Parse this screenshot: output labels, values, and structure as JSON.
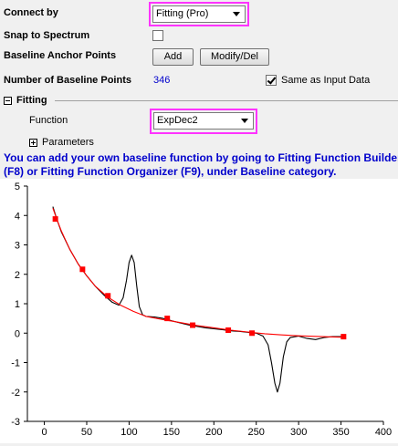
{
  "connect_by": {
    "label": "Connect by",
    "value": "Fitting (Pro)"
  },
  "snap": {
    "label": "Snap to Spectrum",
    "checked": false
  },
  "anchor": {
    "label": "Baseline Anchor Points",
    "add_label": "Add",
    "modify_label": "Modify/Del"
  },
  "num_points": {
    "label": "Number of Baseline Points",
    "value": "346",
    "same_label": "Same as Input Data",
    "same_checked": true
  },
  "fitting": {
    "header": "Fitting",
    "function_label": "Function",
    "function_value": "ExpDec2",
    "parameters_label": "Parameters"
  },
  "hint": {
    "line1": "You can add your own baseline function by going to Fitting Function Builder",
    "line2": "(F8) or Fitting Function Organizer (F9), under Baseline category."
  },
  "colors": {
    "highlight": "#ff33ff",
    "hint": "#0000cc",
    "baseline": "#ff0000",
    "anchor": "#ff0000",
    "data": "#000000"
  },
  "chart_data": {
    "type": "line",
    "title": "",
    "xlabel": "",
    "ylabel": "",
    "xlim": [
      -20,
      400
    ],
    "ylim": [
      -3,
      5
    ],
    "xticks": [
      0,
      50,
      100,
      150,
      200,
      250,
      300,
      350,
      400
    ],
    "yticks": [
      -3,
      -2,
      -1,
      0,
      1,
      2,
      3,
      4,
      5
    ],
    "series": [
      {
        "role": "data",
        "x": [
          10,
          15,
          20,
          30,
          40,
          50,
          60,
          70,
          80,
          88,
          93,
          97,
          100,
          103,
          106,
          109,
          112,
          116,
          120,
          130,
          140,
          150,
          160,
          170,
          180,
          190,
          200,
          210,
          220,
          230,
          240,
          250,
          258,
          264,
          268,
          272,
          275,
          278,
          282,
          286,
          290,
          300,
          310,
          320,
          330,
          340,
          355
        ],
        "y": [
          4.3,
          3.85,
          3.45,
          2.85,
          2.35,
          1.95,
          1.6,
          1.3,
          1.05,
          0.95,
          1.2,
          1.8,
          2.4,
          2.65,
          2.4,
          1.6,
          0.9,
          0.62,
          0.57,
          0.55,
          0.5,
          0.42,
          0.35,
          0.28,
          0.23,
          0.18,
          0.15,
          0.12,
          0.08,
          0.06,
          0.03,
          0.0,
          -0.1,
          -0.4,
          -1.0,
          -1.7,
          -2.0,
          -1.7,
          -0.8,
          -0.3,
          -0.15,
          -0.1,
          -0.18,
          -0.22,
          -0.15,
          -0.12,
          -0.12
        ]
      },
      {
        "role": "baseline",
        "x": [
          10,
          15,
          20,
          30,
          40,
          50,
          60,
          75,
          90,
          105,
          120,
          140,
          160,
          180,
          200,
          220,
          240,
          260,
          280,
          300,
          320,
          340,
          355
        ],
        "y": [
          4.25,
          3.85,
          3.48,
          2.85,
          2.35,
          1.95,
          1.6,
          1.22,
          0.95,
          0.74,
          0.57,
          0.46,
          0.36,
          0.26,
          0.18,
          0.1,
          0.04,
          -0.02,
          -0.06,
          -0.09,
          -0.11,
          -0.13,
          -0.14
        ]
      }
    ],
    "anchors": {
      "x": [
        13,
        45,
        75,
        145,
        175,
        217,
        245,
        353
      ],
      "y": [
        3.88,
        2.17,
        1.27,
        0.5,
        0.27,
        0.1,
        0.0,
        -0.12
      ]
    }
  }
}
